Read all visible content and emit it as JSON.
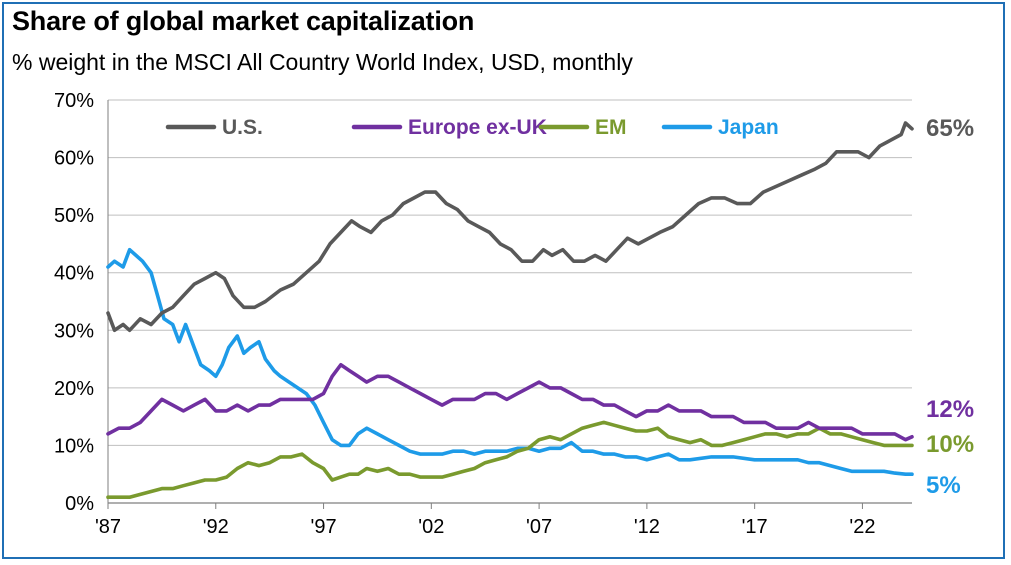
{
  "chart_data": {
    "type": "line",
    "title": "Share of global market capitalization",
    "subtitle": "% weight in the MSCI All Country World Index, USD, monthly",
    "xlabel": "",
    "ylabel": "",
    "xlim": [
      1987.0,
      2024.3
    ],
    "ylim": [
      0,
      70
    ],
    "y_ticks": [
      0,
      10,
      20,
      30,
      40,
      50,
      60,
      70
    ],
    "y_tick_labels": [
      "0%",
      "10%",
      "20%",
      "30%",
      "40%",
      "50%",
      "60%",
      "70%"
    ],
    "x_ticks": [
      1987,
      1992,
      1997,
      2002,
      2007,
      2012,
      2017,
      2022
    ],
    "x_tick_labels": [
      "'87",
      "'92",
      "'97",
      "'02",
      "'07",
      "'12",
      "'17",
      "'22"
    ],
    "grid": "horizontal",
    "legend_position": "top-left",
    "series": [
      {
        "name": "U.S.",
        "color": "#595959",
        "end_label": "65%",
        "x": [
          1987.0,
          1987.3,
          1987.7,
          1988.0,
          1988.5,
          1989.0,
          1989.5,
          1990.0,
          1990.5,
          1991.0,
          1991.5,
          1992.0,
          1992.4,
          1992.8,
          1993.3,
          1993.8,
          1994.3,
          1995.0,
          1995.6,
          1996.2,
          1996.8,
          1997.3,
          1997.8,
          1998.3,
          1998.7,
          1999.2,
          1999.7,
          2000.2,
          2000.7,
          2001.2,
          2001.7,
          2002.2,
          2002.7,
          2003.2,
          2003.7,
          2004.2,
          2004.7,
          2005.2,
          2005.7,
          2006.2,
          2006.7,
          2007.2,
          2007.6,
          2008.1,
          2008.6,
          2009.1,
          2009.6,
          2010.1,
          2010.6,
          2011.1,
          2011.6,
          2012.1,
          2012.6,
          2013.2,
          2013.8,
          2014.4,
          2015.0,
          2015.6,
          2016.2,
          2016.8,
          2017.4,
          2018.0,
          2018.6,
          2019.2,
          2019.8,
          2020.3,
          2020.8,
          2021.3,
          2021.8,
          2022.3,
          2022.8,
          2023.3,
          2023.8,
          2024.0,
          2024.3
        ],
        "values": [
          33,
          30,
          31,
          30,
          32,
          31,
          33,
          34,
          36,
          38,
          39,
          40,
          39,
          36,
          34,
          34,
          35,
          37,
          38,
          40,
          42,
          45,
          47,
          49,
          48,
          47,
          49,
          50,
          52,
          53,
          54,
          54,
          52,
          51,
          49,
          48,
          47,
          45,
          44,
          42,
          42,
          44,
          43,
          44,
          42,
          42,
          43,
          42,
          44,
          46,
          45,
          46,
          47,
          48,
          50,
          52,
          53,
          53,
          52,
          52,
          54,
          55,
          56,
          57,
          58,
          59,
          61,
          61,
          61,
          60,
          62,
          63,
          64,
          66,
          65
        ]
      },
      {
        "name": "Europe ex-UK",
        "color": "#7030a0",
        "end_label": "12%",
        "x": [
          1987.0,
          1987.5,
          1988.0,
          1988.5,
          1989.0,
          1989.5,
          1990.0,
          1990.5,
          1991.0,
          1991.5,
          1992.0,
          1992.5,
          1993.0,
          1993.5,
          1994.0,
          1994.5,
          1995.0,
          1995.5,
          1996.0,
          1996.5,
          1997.0,
          1997.4,
          1997.8,
          1998.2,
          1998.6,
          1999.0,
          1999.5,
          2000.0,
          2000.5,
          2001.0,
          2001.5,
          2002.0,
          2002.5,
          2003.0,
          2003.5,
          2004.0,
          2004.5,
          2005.0,
          2005.5,
          2006.0,
          2006.5,
          2007.0,
          2007.5,
          2008.0,
          2008.5,
          2009.0,
          2009.5,
          2010.0,
          2010.5,
          2011.0,
          2011.5,
          2012.0,
          2012.5,
          2013.0,
          2013.5,
          2014.0,
          2014.5,
          2015.0,
          2015.5,
          2016.0,
          2016.5,
          2017.0,
          2017.5,
          2018.0,
          2018.5,
          2019.0,
          2019.5,
          2020.0,
          2020.5,
          2021.0,
          2021.5,
          2022.0,
          2022.5,
          2023.0,
          2023.5,
          2024.0,
          2024.3
        ],
        "values": [
          12,
          13,
          13,
          14,
          16,
          18,
          17,
          16,
          17,
          18,
          16,
          16,
          17,
          16,
          17,
          17,
          18,
          18,
          18,
          18,
          19,
          22,
          24,
          23,
          22,
          21,
          22,
          22,
          21,
          20,
          19,
          18,
          17,
          18,
          18,
          18,
          19,
          19,
          18,
          19,
          20,
          21,
          20,
          20,
          19,
          18,
          18,
          17,
          17,
          16,
          15,
          16,
          16,
          17,
          16,
          16,
          16,
          15,
          15,
          15,
          14,
          14,
          14,
          13,
          13,
          13,
          14,
          13,
          13,
          13,
          13,
          12,
          12,
          12,
          12,
          11,
          11.5
        ]
      },
      {
        "name": "EM",
        "color": "#7a9a2e",
        "end_label": "10%",
        "x": [
          1987.0,
          1987.5,
          1988.0,
          1988.5,
          1989.0,
          1989.5,
          1990.0,
          1990.5,
          1991.0,
          1991.5,
          1992.0,
          1992.5,
          1993.0,
          1993.5,
          1994.0,
          1994.5,
          1995.0,
          1995.5,
          1996.0,
          1996.5,
          1997.0,
          1997.4,
          1997.8,
          1998.2,
          1998.6,
          1999.0,
          1999.5,
          2000.0,
          2000.5,
          2001.0,
          2001.5,
          2002.0,
          2002.5,
          2003.0,
          2003.5,
          2004.0,
          2004.5,
          2005.0,
          2005.5,
          2006.0,
          2006.5,
          2007.0,
          2007.5,
          2008.0,
          2008.5,
          2009.0,
          2009.5,
          2010.0,
          2010.5,
          2011.0,
          2011.5,
          2012.0,
          2012.5,
          2013.0,
          2013.5,
          2014.0,
          2014.5,
          2015.0,
          2015.5,
          2016.0,
          2016.5,
          2017.0,
          2017.5,
          2018.0,
          2018.5,
          2019.0,
          2019.5,
          2020.0,
          2020.5,
          2021.0,
          2021.5,
          2022.0,
          2022.5,
          2023.0,
          2023.5,
          2024.0,
          2024.3
        ],
        "values": [
          1,
          1,
          1,
          1.5,
          2,
          2.5,
          2.5,
          3,
          3.5,
          4,
          4,
          4.5,
          6,
          7,
          6.5,
          7,
          8,
          8,
          8.5,
          7,
          6,
          4,
          4.5,
          5,
          5,
          6,
          5.5,
          6,
          5,
          5,
          4.5,
          4.5,
          4.5,
          5,
          5.5,
          6,
          7,
          7.5,
          8,
          9,
          9.5,
          11,
          11.5,
          11,
          12,
          13,
          13.5,
          14,
          13.5,
          13,
          12.5,
          12.5,
          13,
          11.5,
          11,
          10.5,
          11,
          10,
          10,
          10.5,
          11,
          11.5,
          12,
          12,
          11.5,
          12,
          12,
          13,
          12,
          12,
          11.5,
          11,
          10.5,
          10,
          10,
          10,
          10
        ]
      },
      {
        "name": "Japan",
        "color": "#1e9be8",
        "end_label": "5%",
        "x": [
          1987.0,
          1987.3,
          1987.7,
          1988.0,
          1988.3,
          1988.6,
          1989.0,
          1989.3,
          1989.6,
          1990.0,
          1990.3,
          1990.6,
          1991.0,
          1991.3,
          1991.7,
          1992.0,
          1992.3,
          1992.6,
          1993.0,
          1993.3,
          1993.6,
          1994.0,
          1994.3,
          1994.7,
          1995.0,
          1995.4,
          1995.8,
          1996.2,
          1996.6,
          1997.0,
          1997.4,
          1997.8,
          1998.2,
          1998.6,
          1999.0,
          1999.5,
          2000.0,
          2000.5,
          2001.0,
          2001.5,
          2002.0,
          2002.5,
          2003.0,
          2003.5,
          2004.0,
          2004.5,
          2005.0,
          2005.5,
          2006.0,
          2006.5,
          2007.0,
          2007.5,
          2008.0,
          2008.5,
          2009.0,
          2009.5,
          2010.0,
          2010.5,
          2011.0,
          2011.5,
          2012.0,
          2012.5,
          2013.0,
          2013.5,
          2014.0,
          2015.0,
          2016.0,
          2017.0,
          2018.0,
          2019.0,
          2019.5,
          2020.0,
          2020.5,
          2021.0,
          2021.5,
          2022.0,
          2022.5,
          2023.0,
          2023.5,
          2024.0,
          2024.3
        ],
        "values": [
          41,
          42,
          41,
          44,
          43,
          42,
          40,
          36,
          32,
          31,
          28,
          31,
          27,
          24,
          23,
          22,
          24,
          27,
          29,
          26,
          27,
          28,
          25,
          23,
          22,
          21,
          20,
          19,
          17,
          14,
          11,
          10,
          10,
          12,
          13,
          12,
          11,
          10,
          9,
          8.5,
          8.5,
          8.5,
          9,
          9,
          8.5,
          9,
          9,
          9,
          9.5,
          9.5,
          9,
          9.5,
          9.5,
          10.5,
          9,
          9,
          8.5,
          8.5,
          8,
          8,
          7.5,
          8,
          8.5,
          7.5,
          7.5,
          8,
          8,
          7.5,
          7.5,
          7.5,
          7,
          7,
          6.5,
          6,
          5.5,
          5.5,
          5.5,
          5.5,
          5.2,
          5,
          5
        ]
      }
    ]
  }
}
